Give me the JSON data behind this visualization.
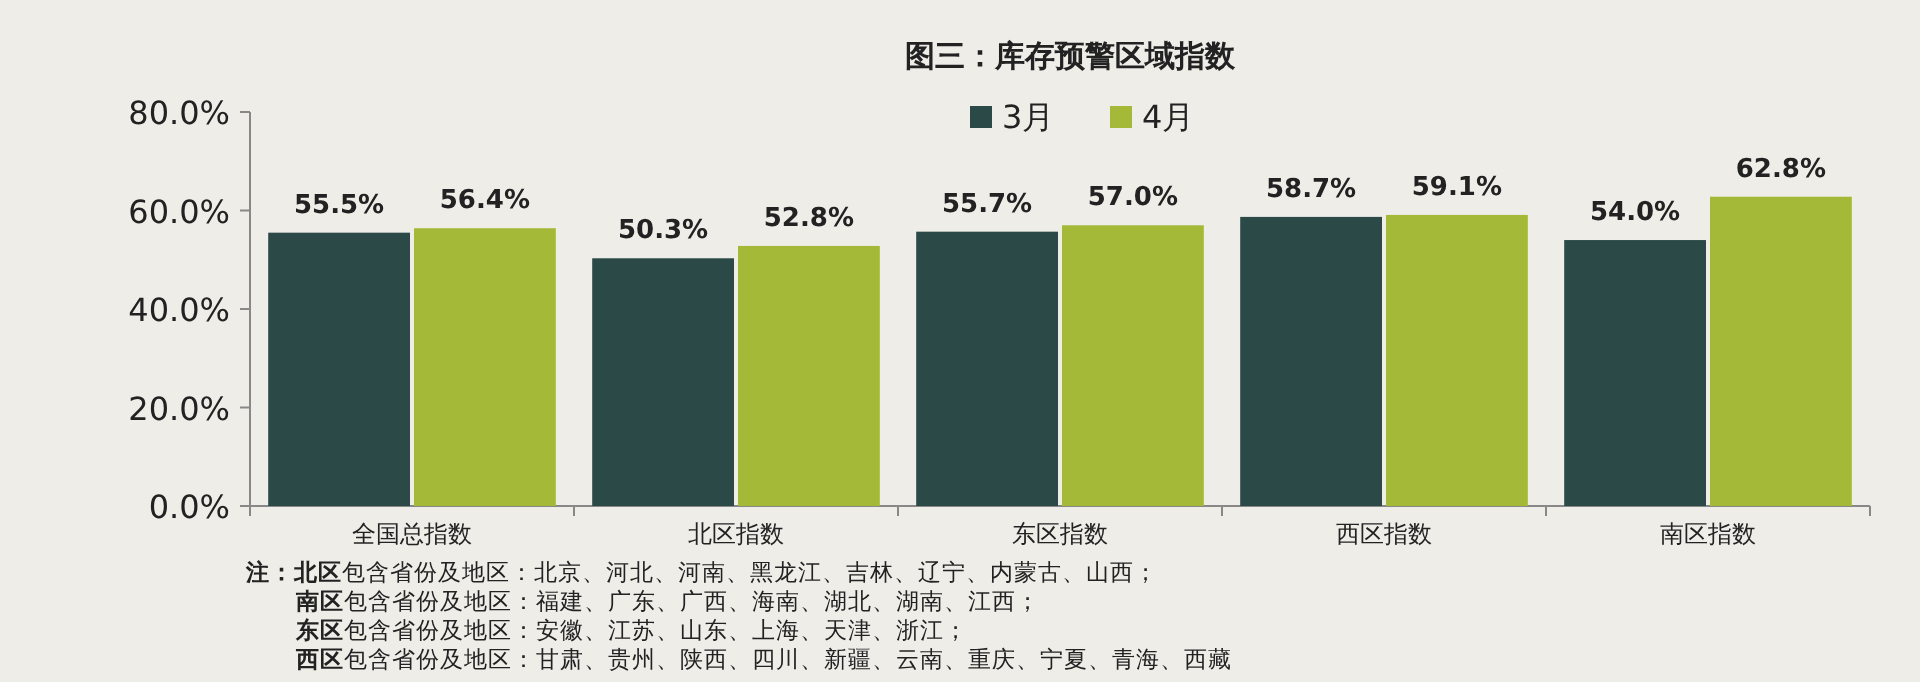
{
  "chart_data": {
    "type": "bar",
    "title": "图三：库存预警区域指数",
    "categories": [
      "全国总指数",
      "北区指数",
      "东区指数",
      "西区指数",
      "南区指数"
    ],
    "series": [
      {
        "name": "3月",
        "color": "#2b4a47",
        "values": [
          55.5,
          50.3,
          55.7,
          58.7,
          54.0
        ],
        "value_labels": [
          "55.5%",
          "50.3%",
          "55.7%",
          "58.7%",
          "54.0%"
        ]
      },
      {
        "name": "4月",
        "color": "#a4b937",
        "values": [
          56.4,
          52.8,
          57.0,
          59.1,
          62.8
        ],
        "value_labels": [
          "56.4%",
          "52.8%",
          "57.0%",
          "59.1%",
          "62.8%"
        ]
      }
    ],
    "ylim": [
      0,
      80
    ],
    "yticks": [
      {
        "value": 0,
        "label": "0.0%"
      },
      {
        "value": 20,
        "label": "20.0%"
      },
      {
        "value": 40,
        "label": "40.0%"
      },
      {
        "value": 60,
        "label": "60.0%"
      },
      {
        "value": 80,
        "label": "80.0%"
      }
    ],
    "grid": false,
    "legend": "top",
    "annotations": [
      "**注：北区**包含省份及地区：北京、河北、河南、黑龙江、吉林、辽宁、内蒙古、山西；",
      "**南区**包含省份及地区：福建、广东、广西、海南、湖北、湖南、江西；",
      "**东区**包含省份及地区：安徽、江苏、山东、上海、天津、浙江；",
      "**西区**包含省份及地区：甘肃、贵州、陕西、四川、新疆、云南、重庆、宁夏、青海、西藏"
    ]
  }
}
